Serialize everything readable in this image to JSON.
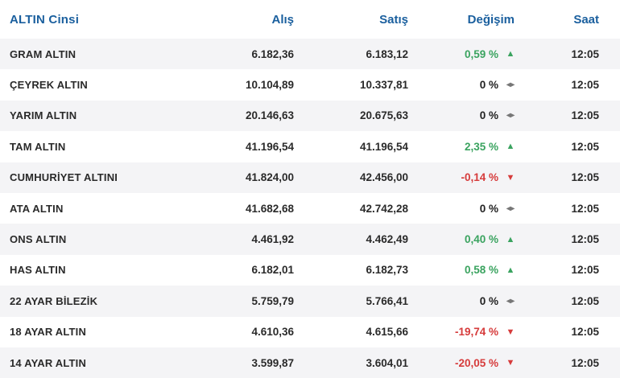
{
  "header": {
    "name": "ALTIN Cinsi",
    "buy": "Alış",
    "sell": "Satış",
    "change": "Değişim",
    "time": "Saat"
  },
  "rows": [
    {
      "name": "GRAM ALTIN",
      "buy": "6.182,36",
      "sell": "6.183,12",
      "change": "0,59 %",
      "trend": "up",
      "arrow": "▲",
      "time": "12:05"
    },
    {
      "name": "ÇEYREK ALTIN",
      "buy": "10.104,89",
      "sell": "10.337,81",
      "change": "0 %",
      "trend": "flat",
      "arrow": "◂▸",
      "time": "12:05"
    },
    {
      "name": "YARIM ALTIN",
      "buy": "20.146,63",
      "sell": "20.675,63",
      "change": "0 %",
      "trend": "flat",
      "arrow": "◂▸",
      "time": "12:05"
    },
    {
      "name": "TAM ALTIN",
      "buy": "41.196,54",
      "sell": "41.196,54",
      "change": "2,35 %",
      "trend": "up",
      "arrow": "▲",
      "time": "12:05"
    },
    {
      "name": "CUMHURİYET ALTINI",
      "buy": "41.824,00",
      "sell": "42.456,00",
      "change": "-0,14 %",
      "trend": "down",
      "arrow": "▼",
      "time": "12:05"
    },
    {
      "name": "ATA ALTIN",
      "buy": "41.682,68",
      "sell": "42.742,28",
      "change": "0 %",
      "trend": "flat",
      "arrow": "◂▸",
      "time": "12:05"
    },
    {
      "name": "ONS ALTIN",
      "buy": "4.461,92",
      "sell": "4.462,49",
      "change": "0,40 %",
      "trend": "up",
      "arrow": "▲",
      "time": "12:05"
    },
    {
      "name": "HAS ALTIN",
      "buy": "6.182,01",
      "sell": "6.182,73",
      "change": "0,58 %",
      "trend": "up",
      "arrow": "▲",
      "time": "12:05"
    },
    {
      "name": "22 AYAR BİLEZİK",
      "buy": "5.759,79",
      "sell": "5.766,41",
      "change": "0 %",
      "trend": "flat",
      "arrow": "◂▸",
      "time": "12:05"
    },
    {
      "name": "18 AYAR ALTIN",
      "buy": "4.610,36",
      "sell": "4.615,66",
      "change": "-19,74 %",
      "trend": "down",
      "arrow": "▼",
      "time": "12:05"
    },
    {
      "name": "14 AYAR ALTIN",
      "buy": "3.599,87",
      "sell": "3.604,01",
      "change": "-20,05 %",
      "trend": "down",
      "arrow": "▼",
      "time": "12:05"
    }
  ],
  "colors": {
    "header_text": "#1a5f9e",
    "up": "#3aa35f",
    "down": "#d63b3b",
    "row_alt_bg": "#f4f4f6"
  }
}
